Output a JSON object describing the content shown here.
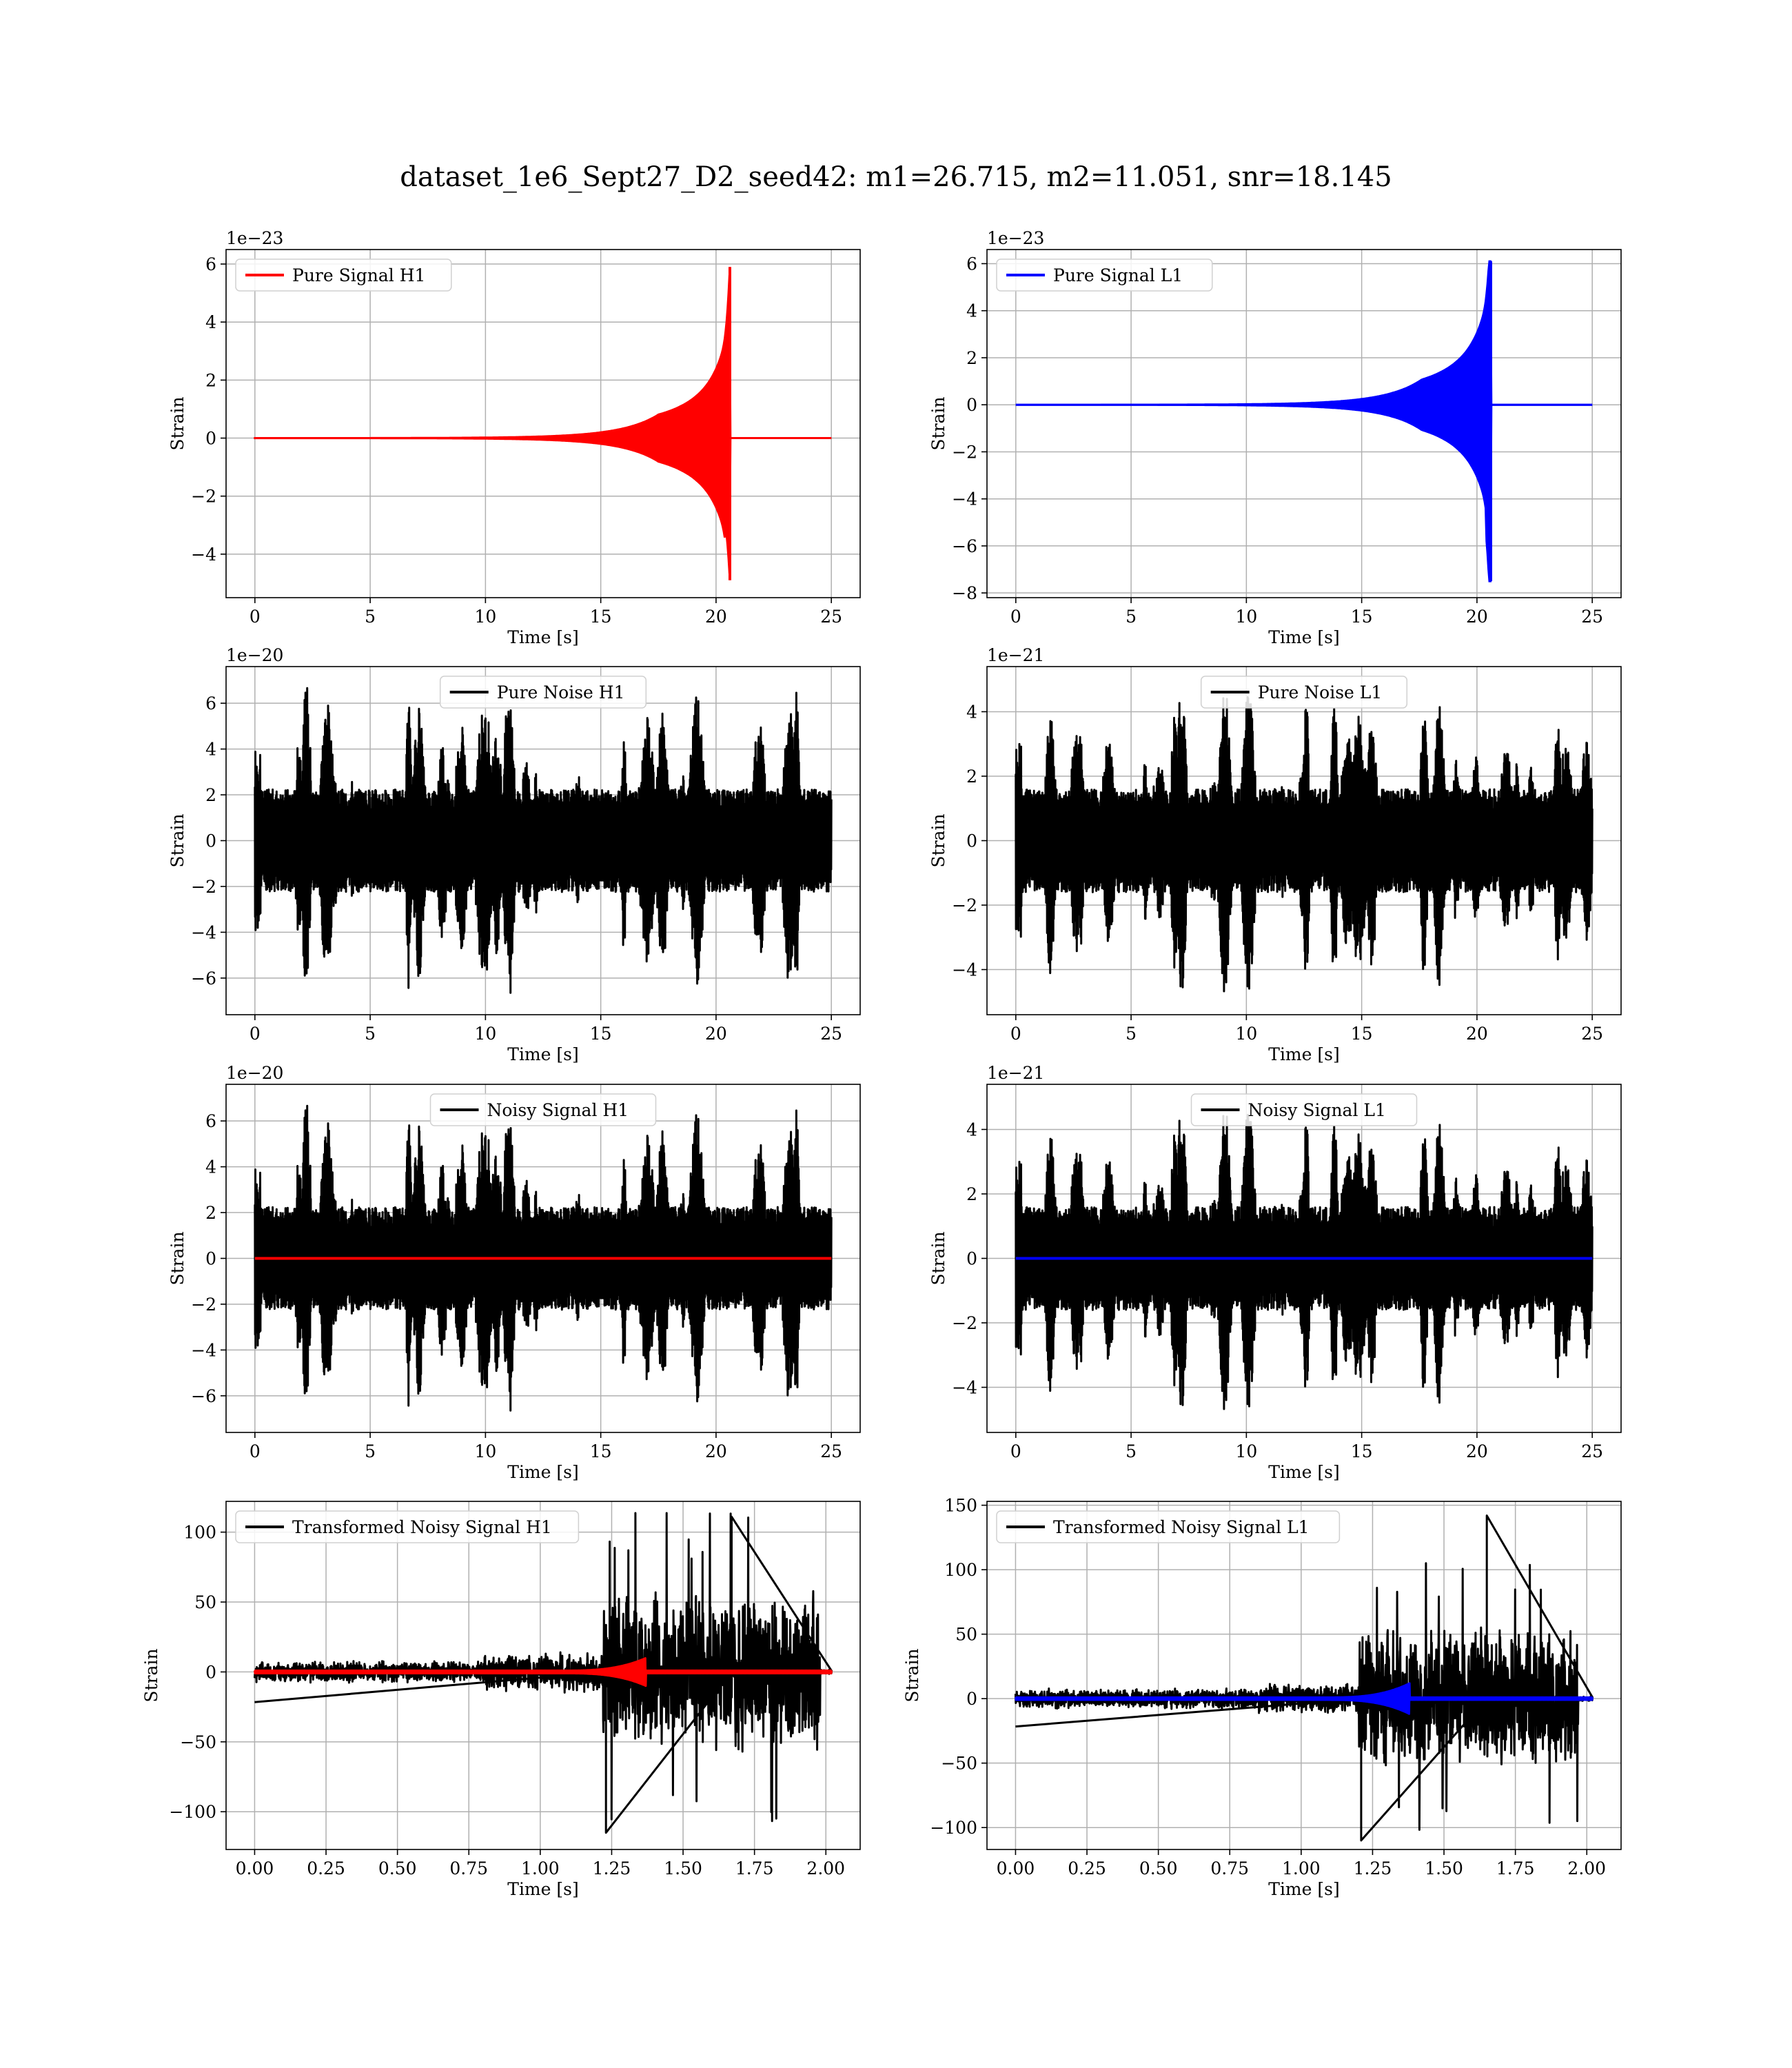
{
  "figure": {
    "title": "dataset_1e6_Sept27_D2_seed42: m1=26.715, m2=11.051, snr=18.145"
  },
  "colors": {
    "h1_signal": "#ff0000",
    "l1_signal": "#0000ff",
    "noise": "#000000",
    "grid": "#b0b0b0"
  },
  "chart_data": [
    {
      "type": "line",
      "legend": "Pure Signal H1",
      "legend_position": "upper-left",
      "xlabel": "Time [s]",
      "ylabel": "Strain",
      "offset_text": "1e−23",
      "xlim": [
        -1.25,
        26.25
      ],
      "ylim": [
        -5.5,
        6.5
      ],
      "xticks": [
        0,
        5,
        10,
        15,
        20,
        25
      ],
      "xtick_labels": [
        "0",
        "5",
        "10",
        "15",
        "20",
        "25"
      ],
      "yticks": [
        -4,
        -2,
        0,
        2,
        4,
        6
      ],
      "ytick_labels": [
        "−4",
        "−2",
        "0",
        "2",
        "4",
        "6"
      ],
      "grid": true,
      "series": [
        {
          "name": "Pure Signal H1",
          "color": "#ff0000",
          "kind": "chirp",
          "t_start": 0,
          "t_end": 25,
          "t_merge": 20.6,
          "peak_up": 5.9,
          "peak_down": -4.9,
          "plateau_amp": 1.2,
          "plateau_time": 18.7
        }
      ]
    },
    {
      "type": "line",
      "legend": "Pure Signal L1",
      "legend_position": "upper-left",
      "xlabel": "Time [s]",
      "ylabel": "Strain",
      "offset_text": "1e−23",
      "xlim": [
        -1.25,
        26.25
      ],
      "ylim": [
        -8.2,
        6.6
      ],
      "xticks": [
        0,
        5,
        10,
        15,
        20,
        25
      ],
      "xtick_labels": [
        "0",
        "5",
        "10",
        "15",
        "20",
        "25"
      ],
      "yticks": [
        -8,
        -6,
        -4,
        -2,
        0,
        2,
        4,
        6
      ],
      "ytick_labels": [
        "−8",
        "−6",
        "−4",
        "−2",
        "0",
        "2",
        "4",
        "6"
      ],
      "grid": true,
      "series": [
        {
          "name": "Pure Signal L1",
          "color": "#0000ff",
          "kind": "chirp",
          "t_start": 0,
          "t_end": 25,
          "t_merge": 20.6,
          "peak_up": 6.1,
          "peak_down": -7.5,
          "plateau_amp": 1.6,
          "plateau_time": 18.8
        }
      ]
    },
    {
      "type": "line",
      "legend": "Pure Noise H1",
      "legend_position": "upper-center",
      "xlabel": "Time [s]",
      "ylabel": "Strain",
      "offset_text": "1e−20",
      "xlim": [
        -1.25,
        26.25
      ],
      "ylim": [
        -7.6,
        7.6
      ],
      "xticks": [
        0,
        5,
        10,
        15,
        20,
        25
      ],
      "xtick_labels": [
        "0",
        "5",
        "10",
        "15",
        "20",
        "25"
      ],
      "yticks": [
        -6,
        -4,
        -2,
        0,
        2,
        4,
        6
      ],
      "ytick_labels": [
        "−6",
        "−4",
        "−2",
        "0",
        "2",
        "4",
        "6"
      ],
      "grid": true,
      "series": [
        {
          "name": "Pure Noise H1",
          "color": "#000000",
          "kind": "noise",
          "t_start": 0,
          "t_end": 25,
          "amp_max": 7.0,
          "seed": 7,
          "bursts": 38
        }
      ]
    },
    {
      "type": "line",
      "legend": "Pure Noise L1",
      "legend_position": "upper-center",
      "xlabel": "Time [s]",
      "ylabel": "Strain",
      "offset_text": "1e−21",
      "xlim": [
        -1.25,
        26.25
      ],
      "ylim": [
        -5.4,
        5.4
      ],
      "xticks": [
        0,
        5,
        10,
        15,
        20,
        25
      ],
      "xtick_labels": [
        "0",
        "5",
        "10",
        "15",
        "20",
        "25"
      ],
      "yticks": [
        -4,
        -2,
        0,
        2,
        4
      ],
      "ytick_labels": [
        "−4",
        "−2",
        "0",
        "2",
        "4"
      ],
      "grid": true,
      "series": [
        {
          "name": "Pure Noise L1",
          "color": "#000000",
          "kind": "noise",
          "t_start": 0,
          "t_end": 25,
          "amp_max": 5.0,
          "seed": 19,
          "bursts": 34
        }
      ]
    },
    {
      "type": "line",
      "legend": "Noisy Signal H1",
      "legend_position": "upper-center",
      "xlabel": "Time [s]",
      "ylabel": "Strain",
      "offset_text": "1e−20",
      "xlim": [
        -1.25,
        26.25
      ],
      "ylim": [
        -7.6,
        7.6
      ],
      "xticks": [
        0,
        5,
        10,
        15,
        20,
        25
      ],
      "xtick_labels": [
        "0",
        "5",
        "10",
        "15",
        "20",
        "25"
      ],
      "yticks": [
        -6,
        -4,
        -2,
        0,
        2,
        4,
        6
      ],
      "ytick_labels": [
        "−6",
        "−4",
        "−2",
        "0",
        "2",
        "4",
        "6"
      ],
      "grid": true,
      "series": [
        {
          "name": "Noisy Signal H1",
          "color": "#000000",
          "kind": "noise",
          "t_start": 0,
          "t_end": 25,
          "amp_max": 7.0,
          "seed": 7,
          "bursts": 38
        },
        {
          "name": "",
          "color": "#ff0000",
          "kind": "flat",
          "t_start": 0,
          "t_end": 25,
          "value": 0
        }
      ]
    },
    {
      "type": "line",
      "legend": "Noisy Signal L1",
      "legend_position": "upper-center",
      "xlabel": "Time [s]",
      "ylabel": "Strain",
      "offset_text": "1e−21",
      "xlim": [
        -1.25,
        26.25
      ],
      "ylim": [
        -5.4,
        5.4
      ],
      "xticks": [
        0,
        5,
        10,
        15,
        20,
        25
      ],
      "xtick_labels": [
        "0",
        "5",
        "10",
        "15",
        "20",
        "25"
      ],
      "yticks": [
        -4,
        -2,
        0,
        2,
        4
      ],
      "ytick_labels": [
        "−4",
        "−2",
        "0",
        "2",
        "4"
      ],
      "grid": true,
      "series": [
        {
          "name": "Noisy Signal L1",
          "color": "#000000",
          "kind": "noise",
          "t_start": 0,
          "t_end": 25,
          "amp_max": 5.0,
          "seed": 19,
          "bursts": 34
        },
        {
          "name": "",
          "color": "#0000ff",
          "kind": "flat",
          "t_start": 0,
          "t_end": 25,
          "value": 0
        }
      ]
    },
    {
      "type": "line",
      "legend": "Transformed Noisy Signal H1",
      "legend_position": "upper-left",
      "xlabel": "Time [s]",
      "ylabel": "Strain",
      "offset_text": "",
      "xlim": [
        -0.1,
        2.12
      ],
      "ylim": [
        -127,
        122
      ],
      "xticks": [
        0.0,
        0.25,
        0.5,
        0.75,
        1.0,
        1.25,
        1.5,
        1.75,
        2.0
      ],
      "xtick_labels": [
        "0.00",
        "0.25",
        "0.50",
        "0.75",
        "1.00",
        "1.25",
        "1.50",
        "1.75",
        "2.00"
      ],
      "yticks": [
        -100,
        -50,
        0,
        50,
        100
      ],
      "ytick_labels": [
        "−100",
        "−50",
        "0",
        "50",
        "100"
      ],
      "grid": true,
      "series": [
        {
          "name": "Transformed Noisy Signal H1",
          "color": "#000000",
          "kind": "whitened",
          "t_start": 0,
          "t_end": 2.02,
          "low_amp": 8,
          "mid_amp": 15,
          "high_amp": 60,
          "t_mid": 0.8,
          "t_high": 1.22,
          "t_cut": 1.98,
          "spike_max": 111,
          "spike_min": -115,
          "seed": 3
        },
        {
          "name": "",
          "color": "#ff0000",
          "kind": "whitened_chirp",
          "t_start": 0,
          "t_end": 2.02,
          "t_peak": 1.37,
          "peak": 10
        }
      ]
    },
    {
      "type": "line",
      "legend": "Transformed Noisy Signal L1",
      "legend_position": "upper-left",
      "xlabel": "Time [s]",
      "ylabel": "Strain",
      "offset_text": "",
      "xlim": [
        -0.1,
        2.12
      ],
      "ylim": [
        -117,
        153
      ],
      "xticks": [
        0.0,
        0.25,
        0.5,
        0.75,
        1.0,
        1.25,
        1.5,
        1.75,
        2.0
      ],
      "xtick_labels": [
        "0.00",
        "0.25",
        "0.50",
        "0.75",
        "1.00",
        "1.25",
        "1.50",
        "1.75",
        "2.00"
      ],
      "yticks": [
        -100,
        -50,
        0,
        50,
        100,
        150
      ],
      "ytick_labels": [
        "−100",
        "−50",
        "0",
        "50",
        "100",
        "150"
      ],
      "grid": true,
      "series": [
        {
          "name": "Transformed Noisy Signal L1",
          "color": "#000000",
          "kind": "whitened",
          "t_start": 0,
          "t_end": 2.02,
          "low_amp": 8,
          "mid_amp": 12,
          "high_amp": 58,
          "t_mid": 0.85,
          "t_high": 1.2,
          "t_cut": 1.97,
          "spike_max": 142,
          "spike_min": -110,
          "seed": 11
        },
        {
          "name": "",
          "color": "#0000ff",
          "kind": "whitened_chirp",
          "t_start": 0,
          "t_end": 2.02,
          "t_peak": 1.38,
          "peak": 12
        }
      ]
    }
  ]
}
